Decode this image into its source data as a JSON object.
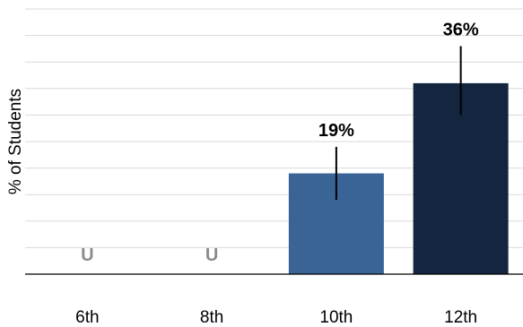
{
  "chart_data": {
    "type": "bar",
    "ylabel": "% of Students",
    "categories": [
      "6th",
      "8th",
      "10th",
      "12th"
    ],
    "values": [
      null,
      null,
      19,
      36
    ],
    "display_labels": [
      "U",
      "U",
      "19%",
      "36%"
    ],
    "error_low": [
      null,
      null,
      14,
      30
    ],
    "error_high": [
      null,
      null,
      24,
      43
    ],
    "ylim": [
      0,
      50
    ],
    "grid": true,
    "bar_colors": [
      "#3a6496",
      "#3a6496",
      "#3a6496",
      "#13253f"
    ],
    "suppressed_label_color": "#8c8c8c"
  }
}
